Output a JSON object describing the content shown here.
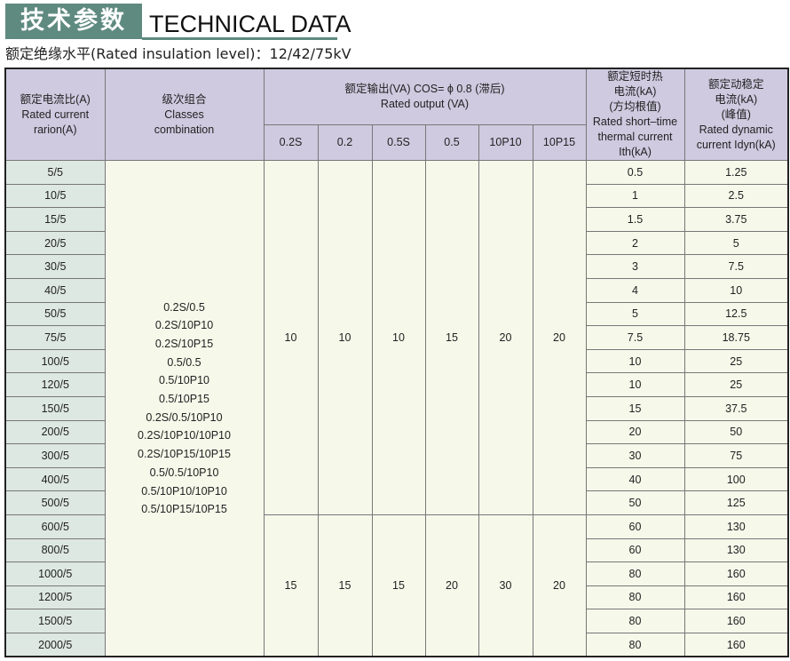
{
  "header": {
    "title_cn": "技术参数",
    "title_en": "TECHNICAL DATA",
    "subtitle": "额定绝缘水平(Rated insulation level)：12/42/75kV"
  },
  "colors": {
    "title_green": "#5f8a80",
    "header_bg": "#cfcae0",
    "body_bg": "#f6f8ea",
    "ratio_bg": "#dee8e3"
  },
  "table": {
    "col_ratio": [
      "额定电流比(A)",
      "Rated current",
      "rarion(A)"
    ],
    "col_classes": [
      "级次组合",
      "Classes",
      "combination"
    ],
    "col_output": [
      "额定输出(VA) COS= ϕ 0.8 (滞后)",
      "Rated output (VA)"
    ],
    "output_subcols": [
      "0.2S",
      "0.2",
      "0.5S",
      "0.5",
      "10P10",
      "10P15"
    ],
    "col_ith": [
      "额定短时热",
      "电流(kA)",
      "(方均根值)",
      "Rated short–time",
      "thermal current",
      "Ith(kA)"
    ],
    "col_idyn": [
      "额定动稳定",
      "电流(kA)",
      "(峰值)",
      "Rated dynamic",
      "current Idyn(kA)"
    ],
    "classes": [
      "0.2S/0.5",
      "0.2S/10P10",
      "0.2S/10P15",
      "0.5/0.5",
      "0.5/10P10",
      "0.5/10P15",
      "0.2S/0.5/10P10",
      "0.2S/10P10/10P10",
      "0.2S/10P15/10P15",
      "0.5/0.5/10P10",
      "0.5/10P10/10P10",
      "0.5/10P15/10P15"
    ],
    "output_group1": [
      "10",
      "10",
      "10",
      "15",
      "20",
      "20"
    ],
    "output_group2": [
      "15",
      "15",
      "15",
      "20",
      "30",
      "20"
    ],
    "rows": [
      {
        "ratio": "5/5",
        "ith": "0.5",
        "idyn": "1.25"
      },
      {
        "ratio": "10/5",
        "ith": "1",
        "idyn": "2.5"
      },
      {
        "ratio": "15/5",
        "ith": "1.5",
        "idyn": "3.75"
      },
      {
        "ratio": "20/5",
        "ith": "2",
        "idyn": "5"
      },
      {
        "ratio": "30/5",
        "ith": "3",
        "idyn": "7.5"
      },
      {
        "ratio": "40/5",
        "ith": "4",
        "idyn": "10"
      },
      {
        "ratio": "50/5",
        "ith": "5",
        "idyn": "12.5"
      },
      {
        "ratio": "75/5",
        "ith": "7.5",
        "idyn": "18.75"
      },
      {
        "ratio": "100/5",
        "ith": "10",
        "idyn": "25"
      },
      {
        "ratio": "120/5",
        "ith": "10",
        "idyn": "25"
      },
      {
        "ratio": "150/5",
        "ith": "15",
        "idyn": "37.5"
      },
      {
        "ratio": "200/5",
        "ith": "20",
        "idyn": "50"
      },
      {
        "ratio": "300/5",
        "ith": "30",
        "idyn": "75"
      },
      {
        "ratio": "400/5",
        "ith": "40",
        "idyn": "100"
      },
      {
        "ratio": "500/5",
        "ith": "50",
        "idyn": "125"
      },
      {
        "ratio": "600/5",
        "ith": "60",
        "idyn": "130"
      },
      {
        "ratio": "800/5",
        "ith": "60",
        "idyn": "130"
      },
      {
        "ratio": "1000/5",
        "ith": "80",
        "idyn": "160"
      },
      {
        "ratio": "1200/5",
        "ith": "80",
        "idyn": "160"
      },
      {
        "ratio": "1500/5",
        "ith": "80",
        "idyn": "160"
      },
      {
        "ratio": "2000/5",
        "ith": "80",
        "idyn": "160"
      }
    ]
  }
}
